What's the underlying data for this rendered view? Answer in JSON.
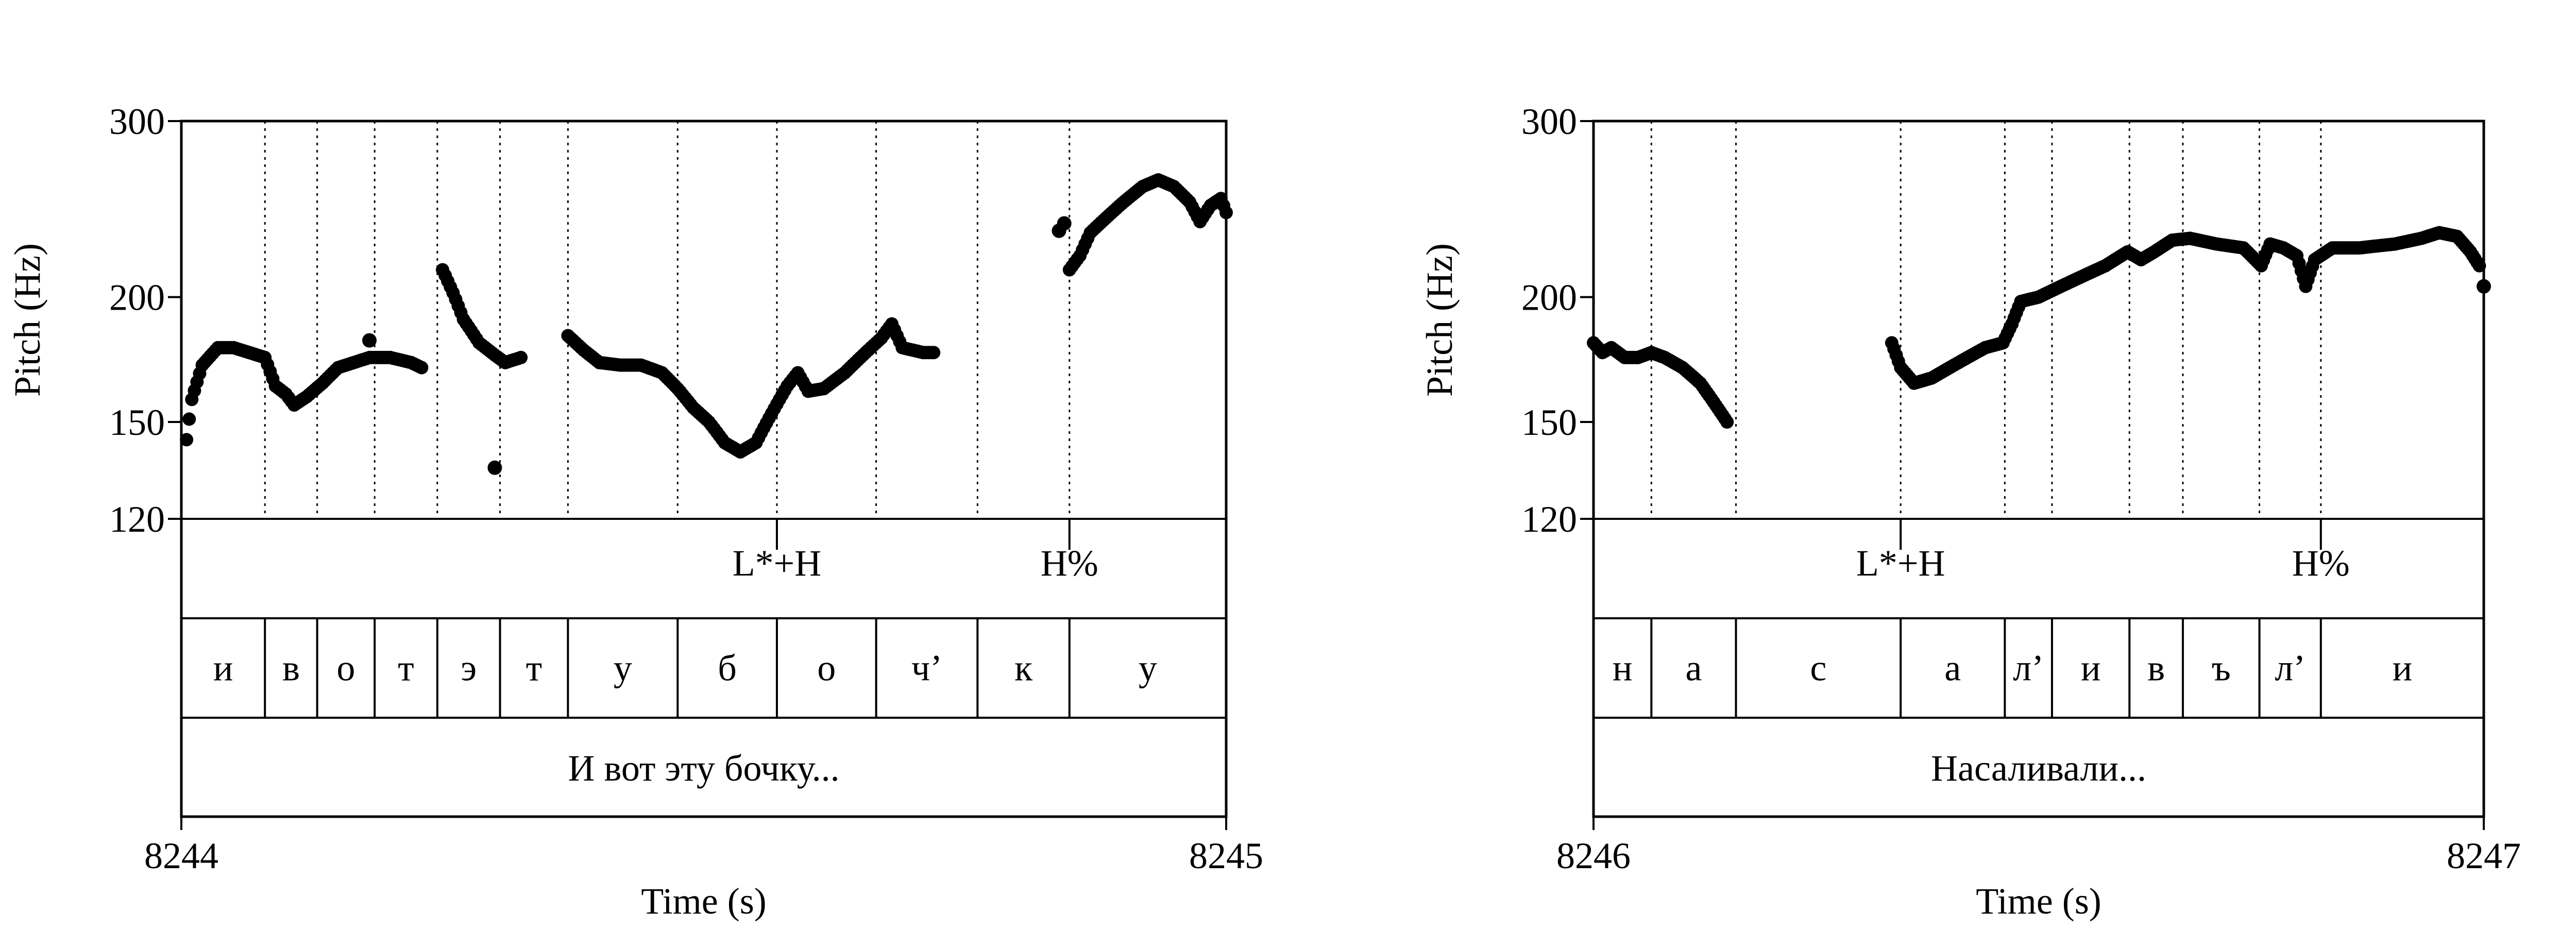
{
  "colors": {
    "ink": "#000000",
    "background": "#ffffff"
  },
  "chart_data": [
    {
      "type": "scatter",
      "xlabel": "Time (s)",
      "ylabel": "Pitch (Hz)",
      "xlim": [
        8244,
        8245
      ],
      "ylim": [
        120,
        300
      ],
      "y_scale": "log",
      "yticks": [
        "300",
        "200",
        "150",
        "120"
      ],
      "xticks": [
        "8244",
        "8245"
      ],
      "boundaries": [
        8244.08,
        8244.13,
        8244.185,
        8244.245,
        8244.305,
        8244.37,
        8244.475,
        8244.57,
        8244.665,
        8244.762,
        8244.85
      ],
      "tones": [
        {
          "label": "L*+H",
          "t": 8244.57
        },
        {
          "label": "H%",
          "t": 8244.85
        }
      ],
      "segments": [
        {
          "label": "и",
          "start": 8244.0,
          "end": 8244.08
        },
        {
          "label": "в",
          "start": 8244.08,
          "end": 8244.13
        },
        {
          "label": "о",
          "start": 8244.13,
          "end": 8244.185
        },
        {
          "label": "т",
          "start": 8244.185,
          "end": 8244.245
        },
        {
          "label": "э",
          "start": 8244.245,
          "end": 8244.305
        },
        {
          "label": "т",
          "start": 8244.305,
          "end": 8244.37
        },
        {
          "label": "у",
          "start": 8244.37,
          "end": 8244.475
        },
        {
          "label": "б",
          "start": 8244.475,
          "end": 8244.57
        },
        {
          "label": "о",
          "start": 8244.57,
          "end": 8244.665
        },
        {
          "label": "ч’",
          "start": 8244.665,
          "end": 8244.762
        },
        {
          "label": "к",
          "start": 8244.762,
          "end": 8244.85
        },
        {
          "label": "у",
          "start": 8244.85,
          "end": 8245.0
        }
      ],
      "phrase": "И вот эту бочку...",
      "pitch_contours": [
        [
          [
            8244.005,
            144
          ],
          [
            8244.01,
            158
          ],
          [
            8244.02,
            171
          ],
          [
            8244.035,
            178
          ],
          [
            8244.05,
            178
          ],
          [
            8244.065,
            176
          ],
          [
            8244.08,
            174
          ],
          [
            8244.09,
            163
          ],
          [
            8244.1,
            160
          ],
          [
            8244.108,
            156
          ],
          [
            8244.12,
            159
          ],
          [
            8244.135,
            164
          ],
          [
            8244.15,
            170
          ],
          [
            8244.165,
            172
          ],
          [
            8244.18,
            174
          ],
          [
            8244.2,
            174
          ],
          [
            8244.22,
            172
          ],
          [
            8244.23,
            170
          ]
        ],
        [
          [
            8244.25,
            213
          ],
          [
            8244.26,
            202
          ],
          [
            8244.27,
            190
          ],
          [
            8244.285,
            180
          ],
          [
            8244.3,
            175
          ],
          [
            8244.31,
            172
          ],
          [
            8244.325,
            174
          ]
        ],
        [
          [
            8244.37,
            183
          ],
          [
            8244.385,
            177
          ],
          [
            8244.4,
            172
          ],
          [
            8244.42,
            171
          ],
          [
            8244.44,
            171
          ],
          [
            8244.46,
            168
          ],
          [
            8244.475,
            162
          ],
          [
            8244.49,
            155
          ],
          [
            8244.505,
            150
          ],
          [
            8244.52,
            143
          ],
          [
            8244.535,
            140
          ],
          [
            8244.55,
            143
          ],
          [
            8244.565,
            153
          ],
          [
            8244.58,
            163
          ],
          [
            8244.59,
            168
          ],
          [
            8244.6,
            161
          ],
          [
            8244.615,
            162
          ],
          [
            8244.635,
            168
          ],
          [
            8244.655,
            176
          ],
          [
            8244.67,
            182
          ],
          [
            8244.68,
            188
          ],
          [
            8244.69,
            178
          ],
          [
            8244.71,
            176
          ],
          [
            8244.72,
            176
          ]
        ]
      ],
      "pitch_points": [
        [
          8244.18,
          181
        ],
        [
          8244.3,
          135
        ],
        [
          8244.84,
          233
        ],
        [
          8244.845,
          237
        ]
      ],
      "pitch_contours_late": [
        [
          [
            8244.85,
            213
          ],
          [
            8244.86,
            220
          ],
          [
            8244.87,
            232
          ],
          [
            8244.885,
            240
          ],
          [
            8244.9,
            248
          ],
          [
            8244.92,
            258
          ],
          [
            8244.935,
            262
          ],
          [
            8244.95,
            258
          ],
          [
            8244.965,
            249
          ],
          [
            8244.975,
            238
          ],
          [
            8244.985,
            247
          ],
          [
            8244.995,
            251
          ],
          [
            8245.0,
            243
          ]
        ]
      ]
    },
    {
      "type": "scatter",
      "xlabel": "Time (s)",
      "ylabel": "Pitch (Hz)",
      "xlim": [
        8246,
        8247
      ],
      "ylim": [
        120,
        300
      ],
      "y_scale": "log",
      "yticks": [
        "300",
        "200",
        "150",
        "120"
      ],
      "xticks": [
        "8246",
        "8247"
      ],
      "boundaries": [
        8246.065,
        8246.16,
        8246.345,
        8246.462,
        8246.515,
        8246.602,
        8246.662,
        8246.748,
        8246.817
      ],
      "tones": [
        {
          "label": "L*+H",
          "t": 8246.345
        },
        {
          "label": "H%",
          "t": 8246.817
        }
      ],
      "segments": [
        {
          "label": "н",
          "start": 8246.0,
          "end": 8246.065
        },
        {
          "label": "а",
          "start": 8246.065,
          "end": 8246.16
        },
        {
          "label": "с",
          "start": 8246.16,
          "end": 8246.345
        },
        {
          "label": "а",
          "start": 8246.345,
          "end": 8246.462
        },
        {
          "label": "л’",
          "start": 8246.462,
          "end": 8246.515
        },
        {
          "label": "и",
          "start": 8246.515,
          "end": 8246.602
        },
        {
          "label": "в",
          "start": 8246.602,
          "end": 8246.662
        },
        {
          "label": "ъ",
          "start": 8246.662,
          "end": 8246.748
        },
        {
          "label": "л’",
          "start": 8246.748,
          "end": 8246.817
        },
        {
          "label": "и",
          "start": 8246.817,
          "end": 8247.0
        }
      ],
      "phrase": "Насаливали...",
      "pitch_contours": [
        [
          [
            8246.0,
            180
          ],
          [
            8246.01,
            176
          ],
          [
            8246.02,
            178
          ],
          [
            8246.035,
            174
          ],
          [
            8246.05,
            174
          ],
          [
            8246.065,
            176
          ],
          [
            8246.08,
            174
          ],
          [
            8246.1,
            170
          ],
          [
            8246.12,
            164
          ],
          [
            8246.135,
            157
          ],
          [
            8246.15,
            150
          ]
        ],
        [
          [
            8246.335,
            180
          ],
          [
            8246.345,
            170
          ],
          [
            8246.36,
            164
          ],
          [
            8246.38,
            166
          ],
          [
            8246.4,
            170
          ],
          [
            8246.42,
            174
          ],
          [
            8246.44,
            178
          ],
          [
            8246.46,
            180
          ],
          [
            8246.47,
            188
          ],
          [
            8246.48,
            198
          ],
          [
            8246.5,
            200
          ],
          [
            8246.52,
            204
          ],
          [
            8246.55,
            210
          ],
          [
            8246.575,
            215
          ],
          [
            8246.6,
            222
          ],
          [
            8246.615,
            218
          ],
          [
            8246.63,
            222
          ],
          [
            8246.65,
            228
          ],
          [
            8246.67,
            229
          ],
          [
            8246.7,
            226
          ],
          [
            8246.73,
            224
          ],
          [
            8246.75,
            215
          ],
          [
            8246.76,
            226
          ],
          [
            8246.775,
            224
          ],
          [
            8246.79,
            220
          ],
          [
            8246.8,
            205
          ],
          [
            8246.81,
            218
          ],
          [
            8246.83,
            224
          ],
          [
            8246.86,
            224
          ],
          [
            8246.9,
            226
          ],
          [
            8246.93,
            229
          ],
          [
            8246.95,
            232
          ],
          [
            8246.97,
            230
          ],
          [
            8246.985,
            222
          ],
          [
            8246.995,
            215
          ]
        ]
      ],
      "pitch_points": [
        [
          8247.0,
          205
        ]
      ],
      "pitch_contours_late": []
    }
  ]
}
